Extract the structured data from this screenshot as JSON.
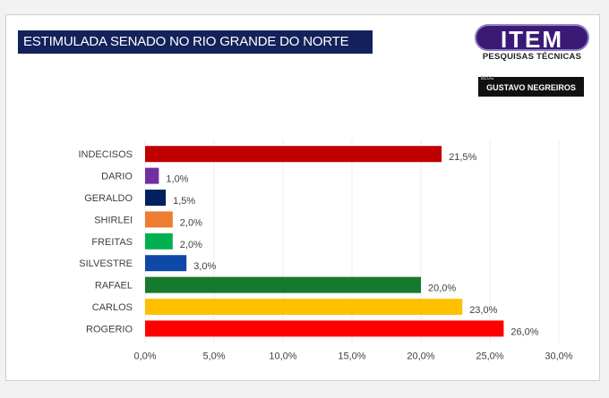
{
  "header": {
    "title": "ESTIMULADA SENADO NO RIO GRANDE DO NORTE"
  },
  "logo": {
    "word": "ITEM",
    "subtitle": "PESQUISAS TÉCNICAS"
  },
  "badge": {
    "label": "GUSTAVO NEGREIROS",
    "prefix": "BLOG"
  },
  "chart_data": {
    "type": "bar",
    "orientation": "horizontal",
    "categories": [
      "INDECISOS",
      "DARIO",
      "GERALDO",
      "SHIRLEI",
      "FREITAS",
      "SILVESTRE",
      "RAFAEL",
      "CARLOS",
      "ROGERIO"
    ],
    "values": [
      21.5,
      1.0,
      1.5,
      2.0,
      2.0,
      3.0,
      20.0,
      23.0,
      26.0
    ],
    "value_labels": [
      "21,5%",
      "1,0%",
      "1,5%",
      "2,0%",
      "2,0%",
      "3,0%",
      "20,0%",
      "23,0%",
      "26,0%"
    ],
    "colors": [
      "#c00000",
      "#7030a0",
      "#002060",
      "#ed7d31",
      "#00b050",
      "#0e48a8",
      "#157a2e",
      "#ffc000",
      "#ff0000"
    ],
    "xlim": [
      0,
      30
    ],
    "ticks": [
      0,
      5,
      10,
      15,
      20,
      25,
      30
    ],
    "tick_labels": [
      "0,0%",
      "5,0%",
      "10,0%",
      "15,0%",
      "20,0%",
      "25,0%",
      "30,0%"
    ],
    "grid": true,
    "title": "ESTIMULADA SENADO NO RIO GRANDE DO NORTE",
    "xlabel": "",
    "ylabel": ""
  }
}
